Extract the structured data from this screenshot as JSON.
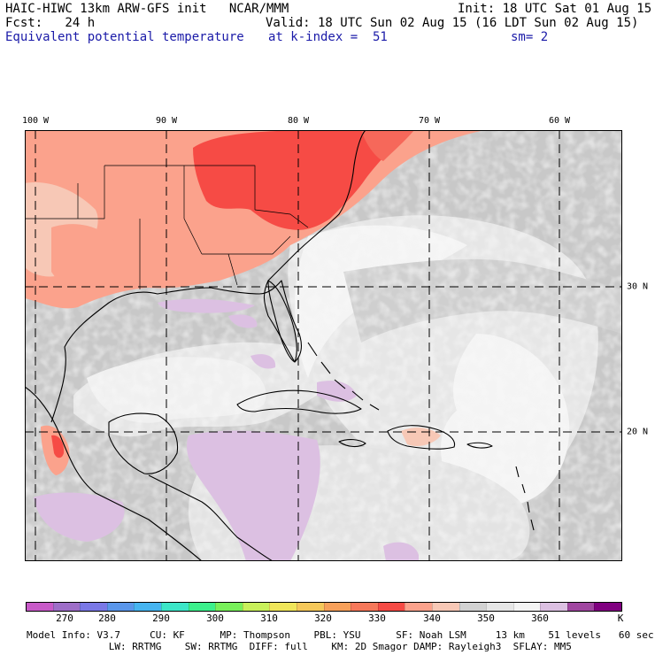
{
  "header": {
    "line1_left": "HAIC-HIWC 13km ARW-GFS init   NCAR/MMM",
    "line1_right": "Init: 18 UTC Sat 01 Aug 15",
    "fcst_label": "Fcst:   24 h",
    "valid": "Valid: 18 UTC Sun 02 Aug 15 (16 LDT Sun 02 Aug 15)",
    "field_name": "Equivalent potential temperature",
    "level": "at k-index =  51",
    "smoothing": "sm= 2"
  },
  "map": {
    "lon_labels": [
      "100 W",
      "90 W",
      "80 W",
      "70 W",
      "60 W"
    ],
    "lat_labels": [
      "30 N",
      "20 N"
    ],
    "colors": {
      "background_gray": "#c8c8c8",
      "light_gray": "#e6e6e6",
      "near_white": "#f4f4f4",
      "warm_330": "#f64b45",
      "warm_340": "#fba28c",
      "warm_345": "#f7c8b6",
      "lavender": "#dcc0e2",
      "coastline": "#000000"
    }
  },
  "colorbar": {
    "colors": [
      "#c85ac8",
      "#9e6ec8",
      "#7a78e6",
      "#5a96ea",
      "#46b4f0",
      "#3ce6c8",
      "#3cf08c",
      "#78f05a",
      "#c8f05a",
      "#f0e65a",
      "#f5c85a",
      "#f7a05a",
      "#f6785a",
      "#f64b45",
      "#fba28c",
      "#f7c8b6",
      "#d2d2d2",
      "#e6e6e6",
      "#f4f4f4",
      "#dcc0e2",
      "#a046a0",
      "#800080"
    ],
    "labels": [
      "270",
      "280",
      "290",
      "300",
      "310",
      "320",
      "330",
      "340",
      "350",
      "360"
    ],
    "unit": "K"
  },
  "footer": {
    "line1": "Model Info: V3.7     CU: KF      MP: Thompson    PBL: YSU      SF: Noah LSM     13 km    51 levels   60 sec",
    "line2": "              LW: RRTMG    SW: RRTMG  DIFF: full    KM: 2D Smagor DAMP: Rayleigh3  SFLAY: MM5"
  }
}
